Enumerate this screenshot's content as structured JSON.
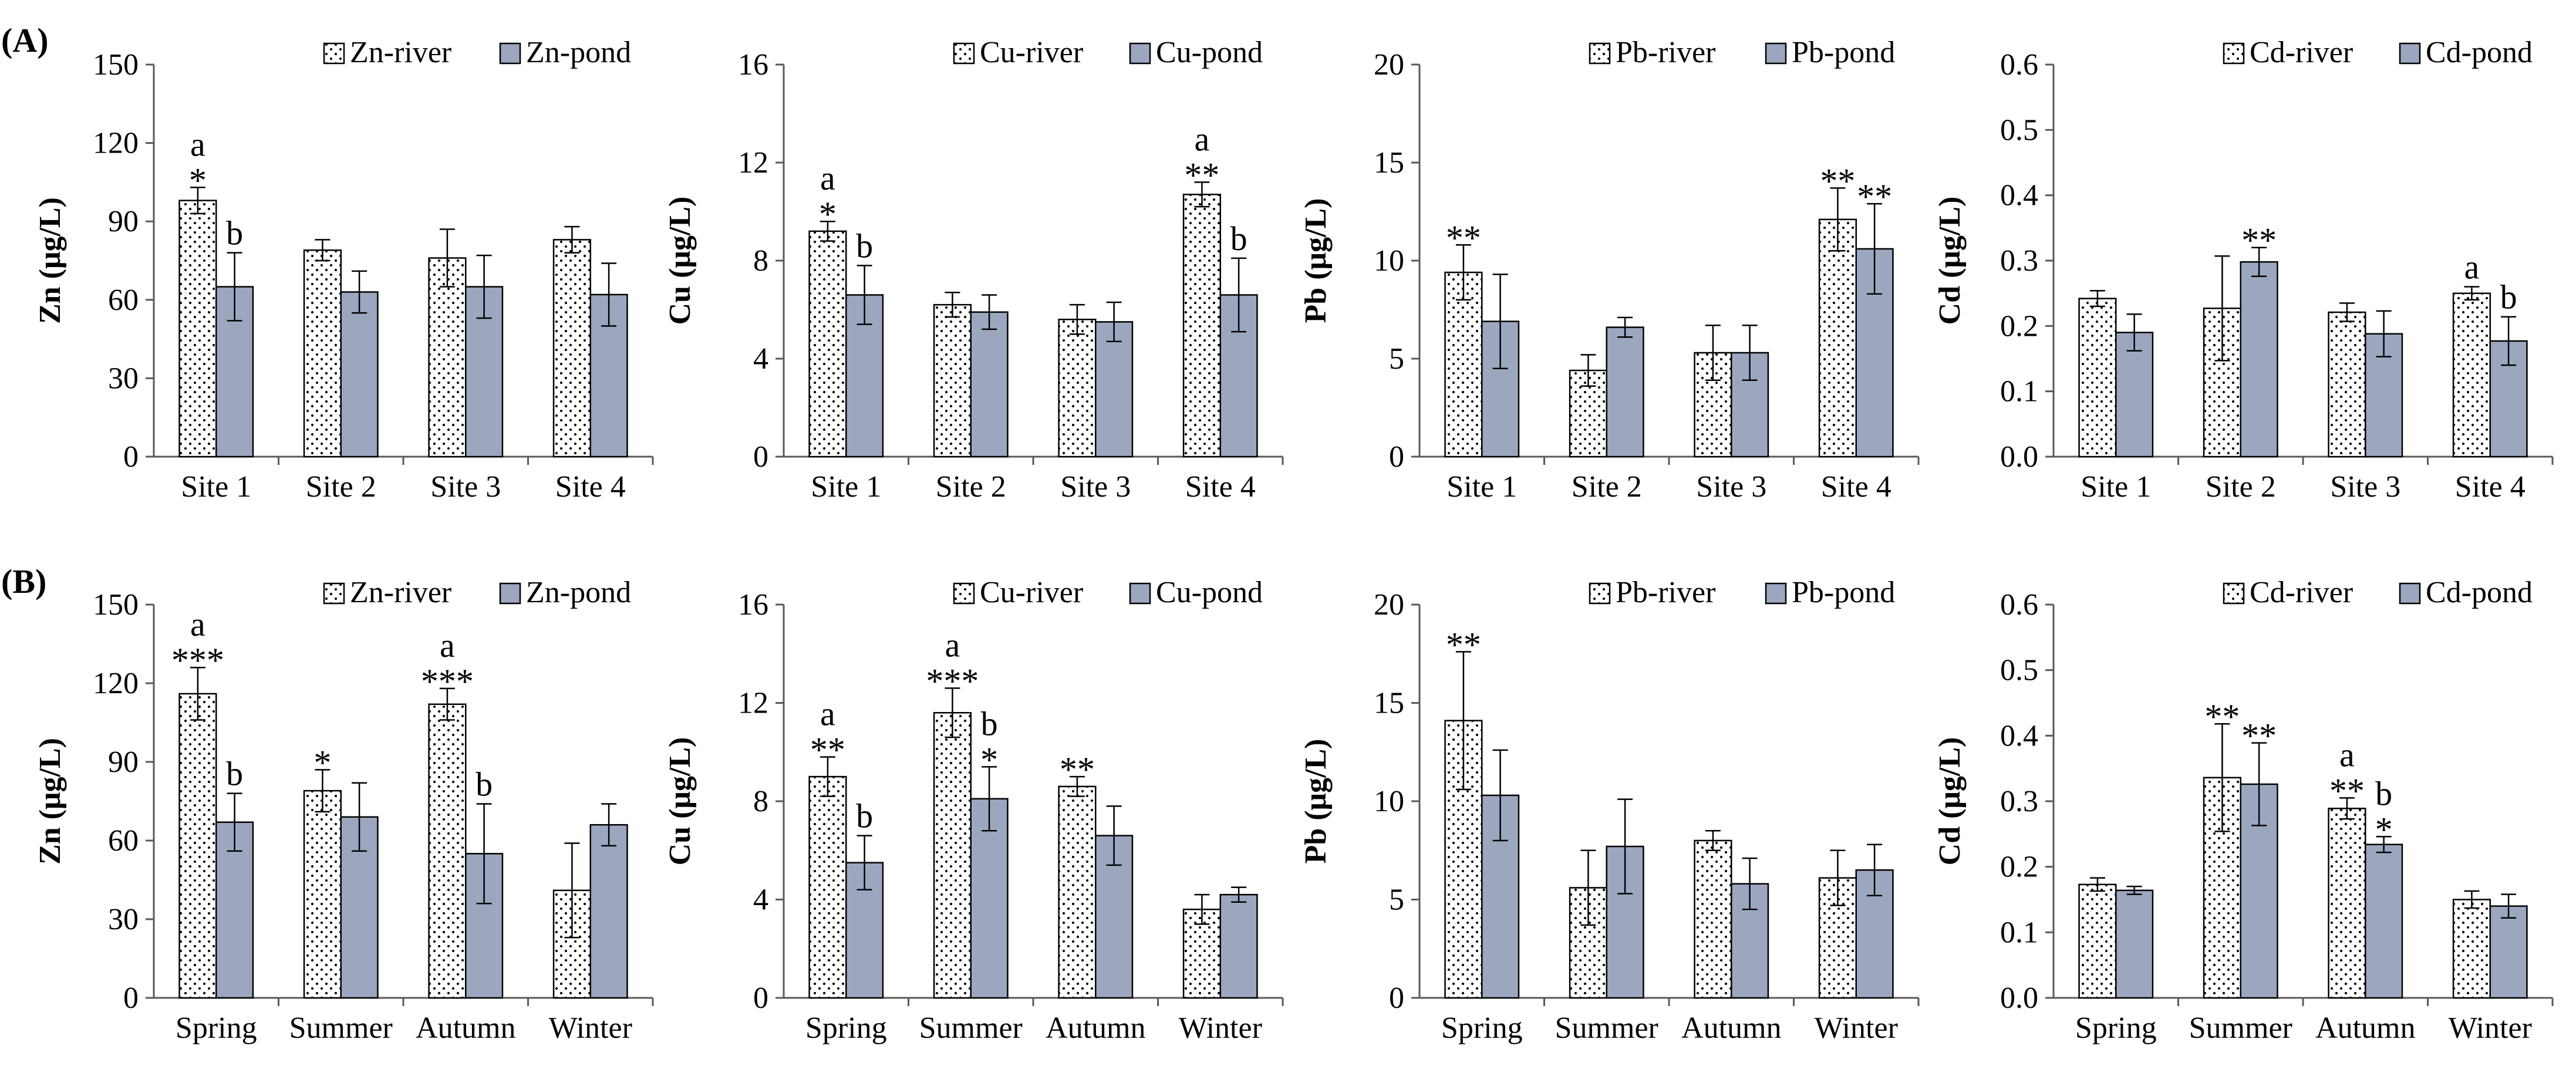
{
  "figure": {
    "row_labels": [
      "(A)",
      "(B)"
    ],
    "colors": {
      "pond": "#9ca7bf",
      "river_dot": "#000000",
      "river_bg": "#ffffff",
      "axis": "#595959"
    }
  },
  "chart_data": [
    {
      "type": "bar",
      "row": 0,
      "col": 0,
      "ylabel": "Zn (μg/L)",
      "ylim": [
        0,
        150
      ],
      "yticks": [
        "0",
        "30",
        "60",
        "90",
        "120",
        "150"
      ],
      "categories": [
        "Site 1",
        "Site 2",
        "Site 3",
        "Site 4"
      ],
      "legend": [
        "Zn-river",
        "Zn-pond"
      ],
      "series": [
        {
          "name": "Zn-river",
          "values": [
            98,
            79,
            76,
            83
          ],
          "errors": [
            5,
            4,
            11,
            5
          ],
          "annotations": [
            "a\n*",
            "",
            "",
            ""
          ]
        },
        {
          "name": "Zn-pond",
          "values": [
            65,
            63,
            65,
            62
          ],
          "errors": [
            13,
            8,
            12,
            12
          ],
          "annotations": [
            "b",
            "",
            "",
            ""
          ]
        }
      ]
    },
    {
      "type": "bar",
      "row": 0,
      "col": 1,
      "ylabel": "Cu (μg/L)",
      "ylim": [
        0,
        16
      ],
      "yticks": [
        "0",
        "4",
        "8",
        "12",
        "16"
      ],
      "categories": [
        "Site 1",
        "Site 2",
        "Site 3",
        "Site 4"
      ],
      "legend": [
        "Cu-river",
        "Cu-pond"
      ],
      "series": [
        {
          "name": "Cu-river",
          "values": [
            9.2,
            6.2,
            5.6,
            10.7
          ],
          "errors": [
            0.4,
            0.5,
            0.6,
            0.5
          ],
          "annotations": [
            "a\n*",
            "",
            "",
            "a\n**"
          ]
        },
        {
          "name": "Cu-pond",
          "values": [
            6.6,
            5.9,
            5.5,
            6.6
          ],
          "errors": [
            1.2,
            0.7,
            0.8,
            1.5
          ],
          "annotations": [
            "b",
            "",
            "",
            "b"
          ]
        }
      ]
    },
    {
      "type": "bar",
      "row": 0,
      "col": 2,
      "ylabel": "Pb (μg/L)",
      "ylim": [
        0,
        20
      ],
      "yticks": [
        "0",
        "5",
        "10",
        "15",
        "20"
      ],
      "categories": [
        "Site 1",
        "Site 2",
        "Site 3",
        "Site 4"
      ],
      "legend": [
        "Pb-river",
        "Pb-pond"
      ],
      "series": [
        {
          "name": "Pb-river",
          "values": [
            9.4,
            4.4,
            5.3,
            12.1
          ],
          "errors": [
            1.4,
            0.8,
            1.4,
            1.6
          ],
          "annotations": [
            "**",
            "",
            "",
            "**"
          ]
        },
        {
          "name": "Pb-pond",
          "values": [
            6.9,
            6.6,
            5.3,
            10.6
          ],
          "errors": [
            2.4,
            0.5,
            1.4,
            2.3
          ],
          "annotations": [
            "",
            "",
            "",
            "**"
          ]
        }
      ]
    },
    {
      "type": "bar",
      "row": 0,
      "col": 3,
      "ylabel": "Cd (μg/L)",
      "ylim": [
        0,
        0.6
      ],
      "yticks": [
        "0.0",
        "0.1",
        "0.2",
        "0.3",
        "0.4",
        "0.5",
        "0.6"
      ],
      "categories": [
        "Site 1",
        "Site 2",
        "Site 3",
        "Site 4"
      ],
      "legend": [
        "Cd-river",
        "Cd-pond"
      ],
      "series": [
        {
          "name": "Cd-river",
          "values": [
            0.242,
            0.227,
            0.221,
            0.25
          ],
          "errors": [
            0.012,
            0.08,
            0.014,
            0.01
          ],
          "annotations": [
            "",
            "",
            "",
            "a"
          ]
        },
        {
          "name": "Cd-pond",
          "values": [
            0.19,
            0.298,
            0.188,
            0.177
          ],
          "errors": [
            0.028,
            0.022,
            0.035,
            0.037
          ],
          "annotations": [
            "",
            "**",
            "",
            "b"
          ]
        }
      ]
    },
    {
      "type": "bar",
      "row": 1,
      "col": 0,
      "ylabel": "Zn (μg/L)",
      "ylim": [
        0,
        150
      ],
      "yticks": [
        "0",
        "30",
        "60",
        "90",
        "120",
        "150"
      ],
      "categories": [
        "Spring",
        "Summer",
        "Autumn",
        "Winter"
      ],
      "legend": [
        "Zn-river",
        "Zn-pond"
      ],
      "series": [
        {
          "name": "Zn-river",
          "values": [
            116,
            79,
            112,
            41
          ],
          "errors": [
            10,
            8,
            6,
            18
          ],
          "annotations": [
            "a\n***",
            "*",
            "a\n***",
            ""
          ]
        },
        {
          "name": "Zn-pond",
          "values": [
            67,
            69,
            55,
            66
          ],
          "errors": [
            11,
            13,
            19,
            8
          ],
          "annotations": [
            "b",
            "",
            "b",
            ""
          ]
        }
      ]
    },
    {
      "type": "bar",
      "row": 1,
      "col": 1,
      "ylabel": "Cu (μg/L)",
      "ylim": [
        0,
        16
      ],
      "yticks": [
        "0",
        "4",
        "8",
        "12",
        "16"
      ],
      "categories": [
        "Spring",
        "Summer",
        "Autumn",
        "Winter"
      ],
      "legend": [
        "Cu-river",
        "Cu-pond"
      ],
      "series": [
        {
          "name": "Cu-river",
          "values": [
            9.0,
            11.6,
            8.6,
            3.6
          ],
          "errors": [
            0.8,
            1.0,
            0.4,
            0.6
          ],
          "annotations": [
            "a\n**",
            "a\n***",
            "**",
            ""
          ]
        },
        {
          "name": "Cu-pond",
          "values": [
            5.5,
            8.1,
            6.6,
            4.2
          ],
          "errors": [
            1.1,
            1.3,
            1.2,
            0.3
          ],
          "annotations": [
            "b",
            "b\n*",
            "",
            ""
          ]
        }
      ]
    },
    {
      "type": "bar",
      "row": 1,
      "col": 2,
      "ylabel": "Pb (μg/L)",
      "ylim": [
        0,
        20
      ],
      "yticks": [
        "0",
        "5",
        "10",
        "15",
        "20"
      ],
      "categories": [
        "Spring",
        "Summer",
        "Autumn",
        "Winter"
      ],
      "legend": [
        "Pb-river",
        "Pb-pond"
      ],
      "series": [
        {
          "name": "Pb-river",
          "values": [
            14.1,
            5.6,
            8.0,
            6.1
          ],
          "errors": [
            3.5,
            1.9,
            0.5,
            1.4
          ],
          "annotations": [
            "**",
            "",
            "",
            ""
          ]
        },
        {
          "name": "Pb-pond",
          "values": [
            10.3,
            7.7,
            5.8,
            6.5
          ],
          "errors": [
            2.3,
            2.4,
            1.3,
            1.3
          ],
          "annotations": [
            "",
            "",
            "",
            ""
          ]
        }
      ]
    },
    {
      "type": "bar",
      "row": 1,
      "col": 3,
      "ylabel": "Cd (μg/L)",
      "ylim": [
        0,
        0.6
      ],
      "yticks": [
        "0.0",
        "0.1",
        "0.2",
        "0.3",
        "0.4",
        "0.5",
        "0.6"
      ],
      "categories": [
        "Spring",
        "Summer",
        "Autumn",
        "Winter"
      ],
      "legend": [
        "Cd-river",
        "Cd-pond"
      ],
      "series": [
        {
          "name": "Cd-river",
          "values": [
            0.173,
            0.336,
            0.289,
            0.15
          ],
          "errors": [
            0.01,
            0.082,
            0.016,
            0.013
          ],
          "annotations": [
            "",
            "**",
            "a\n**",
            ""
          ]
        },
        {
          "name": "Cd-pond",
          "values": [
            0.164,
            0.326,
            0.234,
            0.14
          ],
          "errors": [
            0.006,
            0.063,
            0.012,
            0.018
          ],
          "annotations": [
            "",
            "**",
            "b\n*",
            ""
          ]
        }
      ]
    }
  ]
}
